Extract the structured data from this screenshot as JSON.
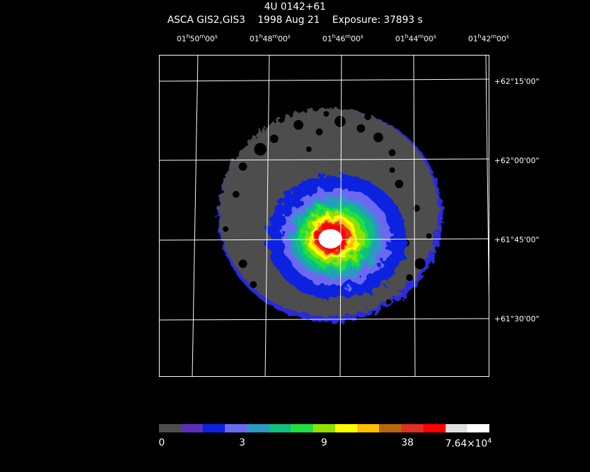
{
  "header": {
    "title": "4U 0142+61",
    "subtitle": "ASCA GIS2,GIS3    1998 Aug 21    Exposure: 37893 s"
  },
  "ra_labels": [
    {
      "h": "01",
      "m": "50",
      "s": "00"
    },
    {
      "h": "01",
      "m": "48",
      "s": "00"
    },
    {
      "h": "01",
      "m": "46",
      "s": "00"
    },
    {
      "h": "01",
      "m": "44",
      "s": "00"
    },
    {
      "h": "01",
      "m": "42",
      "s": "00"
    }
  ],
  "dec_labels": [
    {
      "d": "+62",
      "m": "15",
      "s": "00"
    },
    {
      "d": "+62",
      "m": "00",
      "s": "00"
    },
    {
      "d": "+61",
      "m": "45",
      "s": "00"
    },
    {
      "d": "+61",
      "m": "30",
      "s": "00"
    }
  ],
  "colorbar": {
    "colors": [
      "#4d4d4d",
      "#5a30b8",
      "#1020e0",
      "#6a6af0",
      "#2a9ac0",
      "#10c080",
      "#20e040",
      "#90e000",
      "#ffff00",
      "#ffc000",
      "#b8680a",
      "#e03020",
      "#ff0000",
      "#e0e0e0",
      "#ffffff"
    ],
    "labels": [
      {
        "text": "0"
      },
      {
        "text": "3"
      },
      {
        "text": "9"
      },
      {
        "text": "38"
      },
      {
        "text": "7.64×10",
        "exp": "4"
      }
    ]
  }
}
